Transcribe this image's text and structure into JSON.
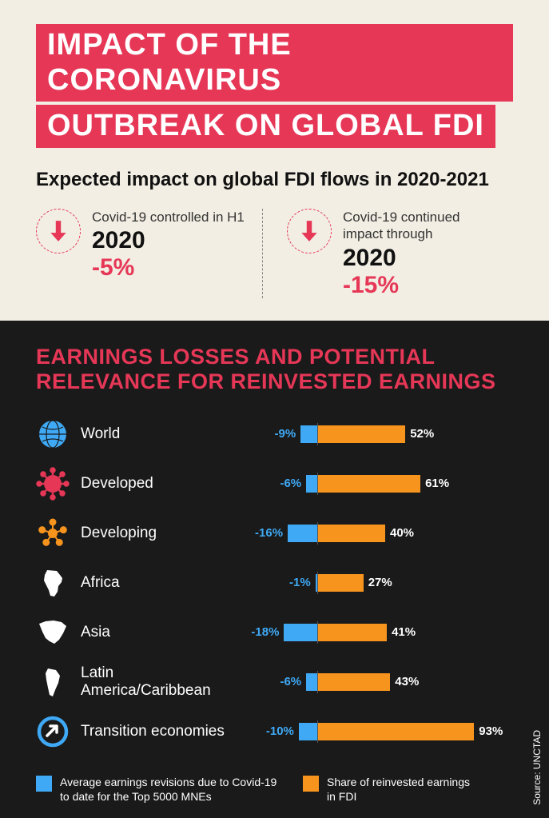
{
  "title_line1": "IMPACT OF THE CORONAVIRUS",
  "title_line2": "OUTBREAK ON GLOBAL FDI",
  "subtitle": "Expected impact on global FDI flows in 2020-2021",
  "scenarios": {
    "neg_scale_max_abs": 20,
    "pos_scale_max": 100,
    "a": {
      "label": "Covid-19 controlled in H1",
      "year": "2020",
      "pct": "-5%"
    },
    "b": {
      "label": "Covid-19 continued impact through",
      "year": "2020",
      "pct": "-15%"
    }
  },
  "dark_title": "EARNINGS LOSSES AND POTENTIAL RELEVANCE FOR REINVESTED EARNINGS",
  "palette": {
    "accent": "#e63757",
    "blue": "#3fa9f5",
    "orange": "#f7941d",
    "dark_bg": "#1a1a1a",
    "light_bg": "#f2eee3"
  },
  "chart": {
    "rows": [
      {
        "icon": "globe",
        "label": "World",
        "neg": -9,
        "pos": 52
      },
      {
        "icon": "virus",
        "label": "Developed",
        "neg": -6,
        "pos": 61
      },
      {
        "icon": "network",
        "label": "Developing",
        "neg": -16,
        "pos": 40
      },
      {
        "icon": "africa",
        "label": "Africa",
        "neg": -1,
        "pos": 27
      },
      {
        "icon": "asia",
        "label": "Asia",
        "neg": -18,
        "pos": 41
      },
      {
        "icon": "latam",
        "label": "Latin America/Caribbean",
        "neg": -6,
        "pos": 43
      },
      {
        "icon": "arrows",
        "label": "Transition economies",
        "neg": -10,
        "pos": 93
      }
    ],
    "neg_scale_max_abs": 20,
    "pos_scale_max": 100
  },
  "legend": {
    "a": "Average earnings revisions due to Covid-19 to date for the Top 5000 MNEs",
    "b": "Share of reinvested earnings in FDI"
  },
  "source": "Source: UNCTAD"
}
